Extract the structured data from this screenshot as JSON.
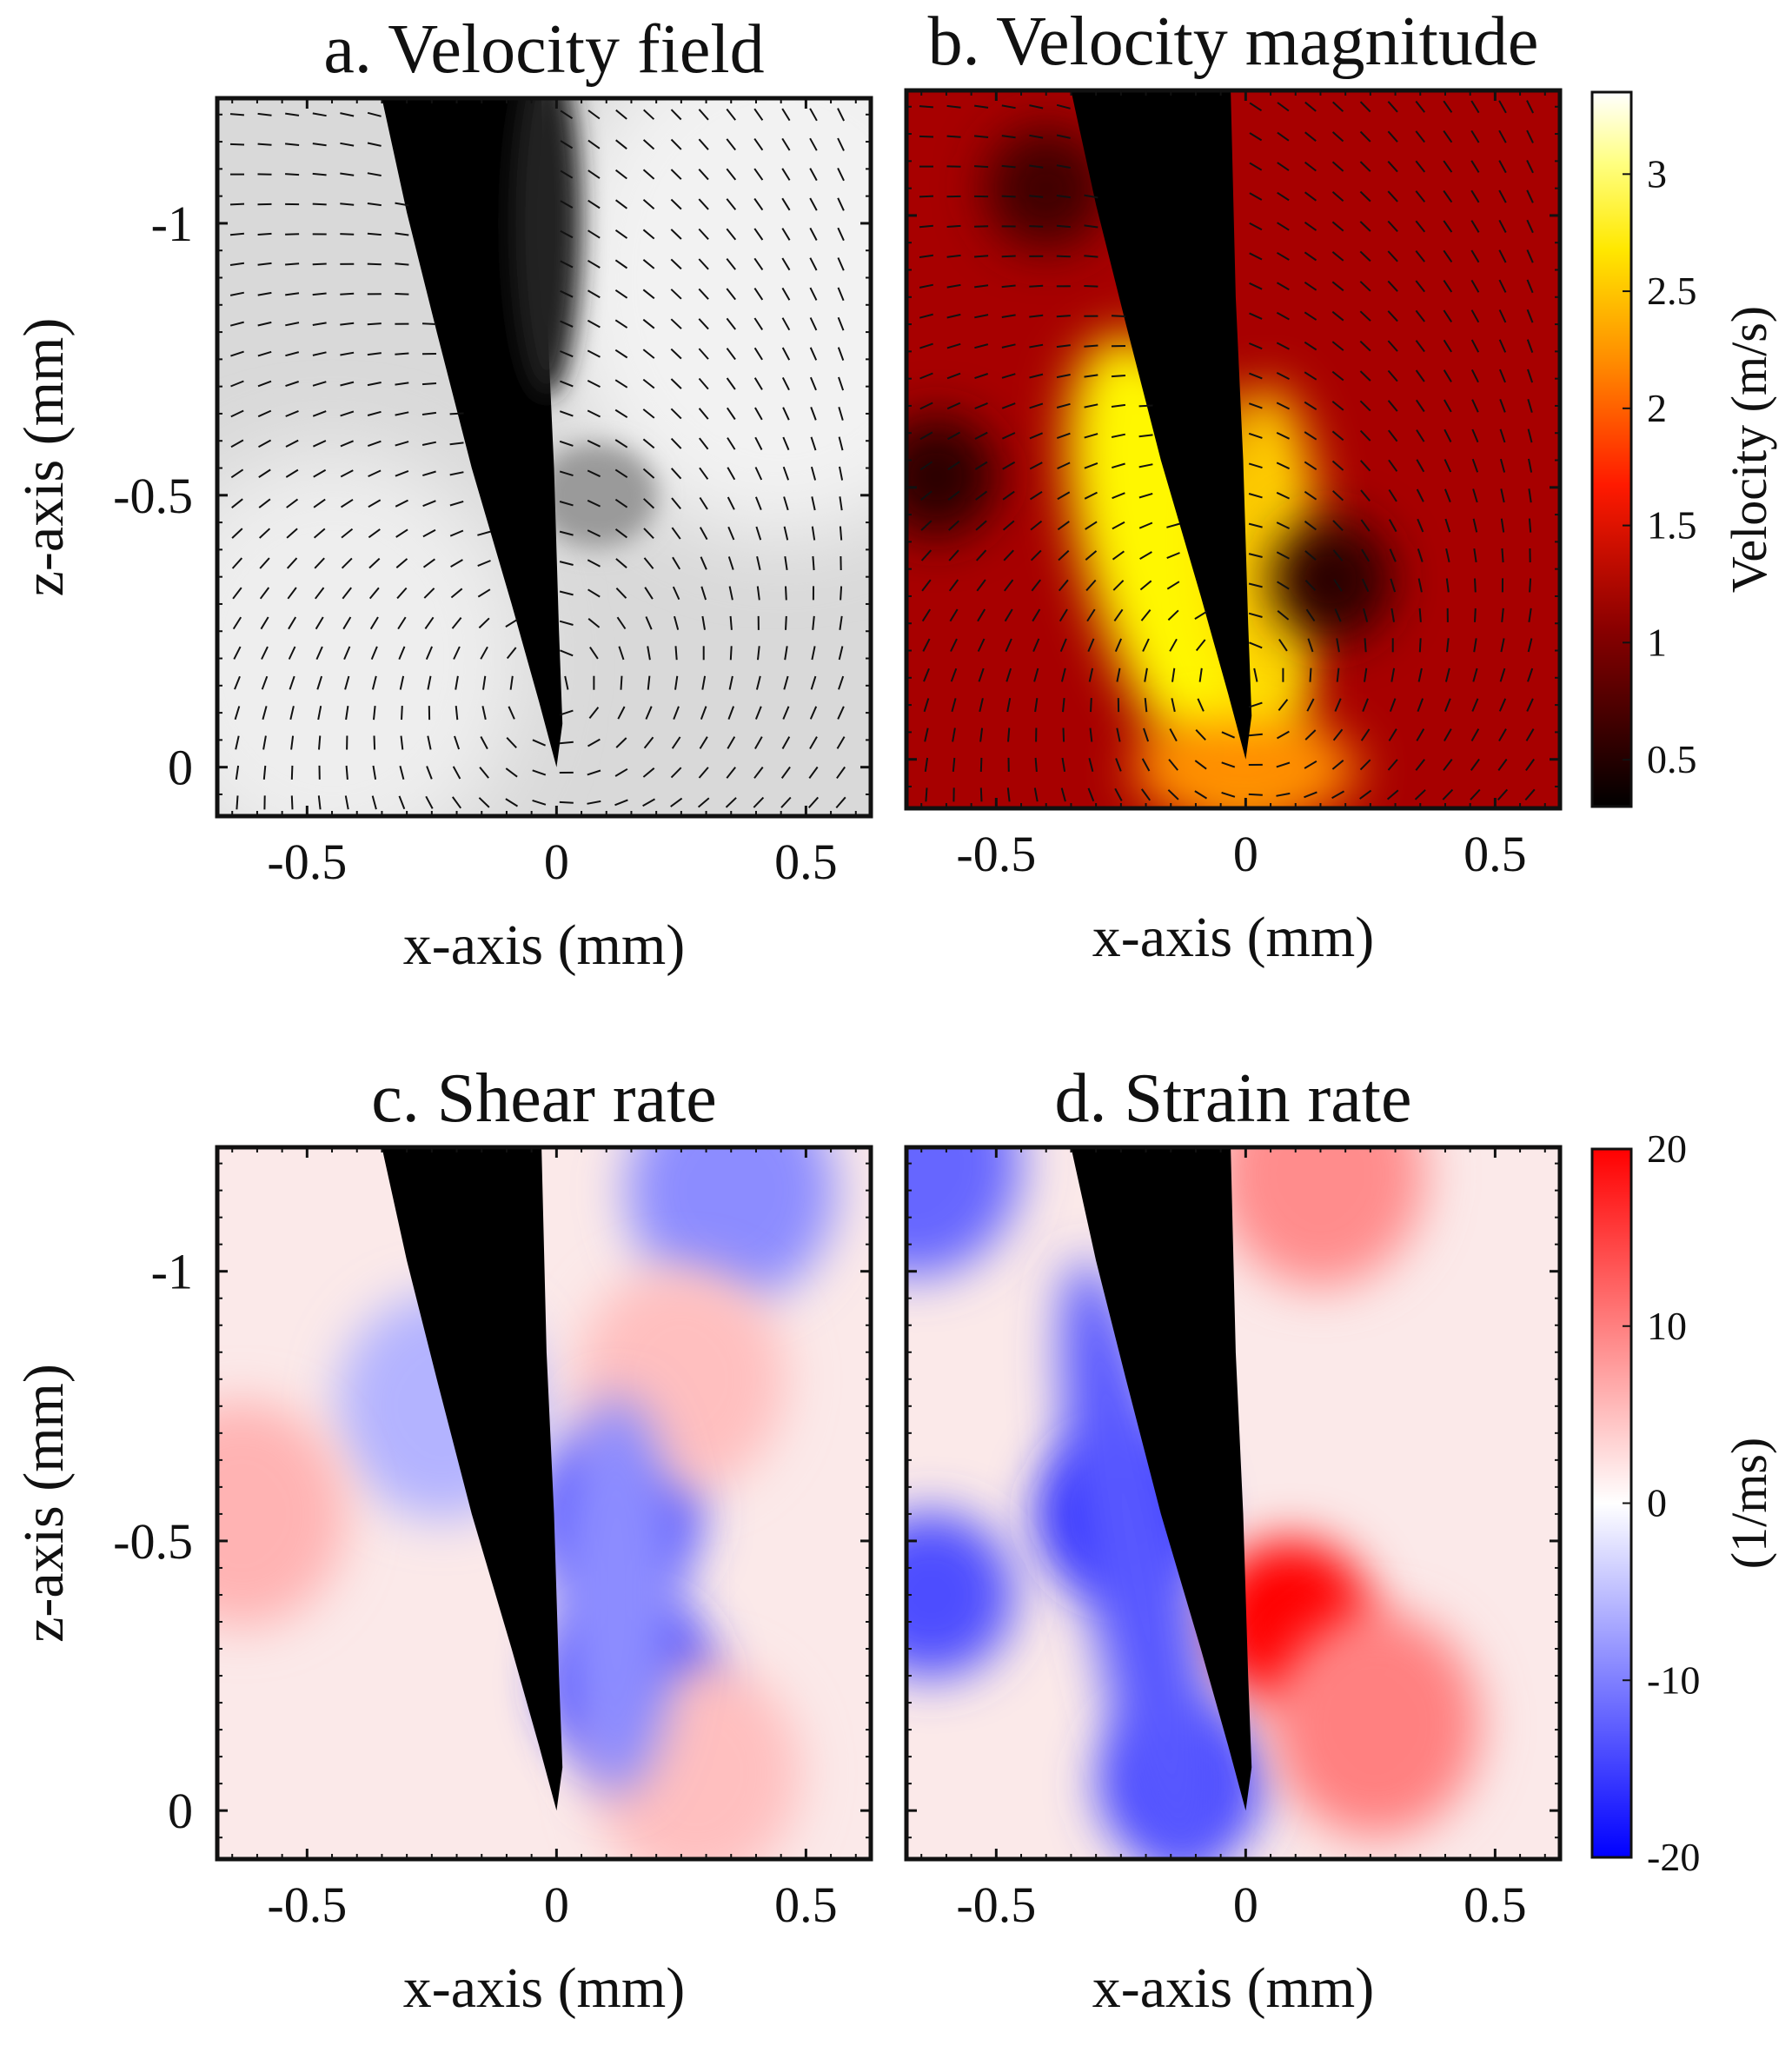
{
  "figure": {
    "colors": {
      "frame": "#111111",
      "tip": "#000000",
      "white": "#ffffff"
    }
  },
  "chart_data": [
    {
      "id": "a",
      "type": "heatmap",
      "title": "a. Velocity field",
      "xlabel": "x-axis (mm)",
      "ylabel": "z-axis (mm)",
      "xlim": [
        -0.68,
        0.63
      ],
      "ylim": [
        -1.23,
        0.09
      ],
      "y_reversed": true,
      "xticks": [
        -0.5,
        0,
        0.5
      ],
      "xticklabels": [
        "-0.5",
        "0",
        "0.5"
      ],
      "yticks": [
        -1,
        -0.5,
        0
      ],
      "yticklabels": [
        "-1",
        "-0.5",
        "0"
      ],
      "background": "grayscale microscope image",
      "overlay": "velocity vectors (quiver)",
      "tip_region": {
        "left_edge": [
          [
            -0.35,
            -1.23
          ],
          [
            0,
            0
          ]
        ],
        "right_edge": [
          [
            -0.04,
            -1.23
          ],
          [
            0,
            0
          ]
        ]
      }
    },
    {
      "id": "b",
      "type": "heatmap",
      "title": "b. Velocity magnitude",
      "xlabel": "x-axis (mm)",
      "ylabel": "",
      "xlim": [
        -0.68,
        0.63
      ],
      "ylim": [
        -1.23,
        0.09
      ],
      "y_reversed": true,
      "xticks": [
        -0.5,
        0,
        0.5
      ],
      "xticklabels": [
        "-0.5",
        "0",
        "0.5"
      ],
      "overlay": "velocity vectors (quiver)",
      "colorbar": {
        "label": "Velocity (m/s)",
        "colormap": "hot",
        "range": [
          0.3,
          3.35
        ],
        "ticks": [
          0.5,
          1,
          1.5,
          2,
          2.5,
          3
        ],
        "ticklabels": [
          "0.5",
          "1",
          "1.5",
          "2",
          "2.5",
          "3"
        ]
      },
      "features": [
        {
          "name": "high-velocity band along tip",
          "x": -0.12,
          "z": -0.45,
          "value": 2.6
        },
        {
          "name": "low-velocity vortex right",
          "x": 0.17,
          "z": -0.33,
          "value": 0.5
        },
        {
          "name": "low-velocity vortex left",
          "x": -0.62,
          "z": -0.52,
          "value": 0.5
        },
        {
          "name": "low-velocity region top",
          "x": -0.4,
          "z": -1.05,
          "value": 0.6
        }
      ]
    },
    {
      "id": "c",
      "type": "heatmap",
      "title": "c. Shear rate",
      "xlabel": "x-axis (mm)",
      "ylabel": "z-axis (mm)",
      "xlim": [
        -0.68,
        0.63
      ],
      "ylim": [
        -1.23,
        0.09
      ],
      "y_reversed": true,
      "xticks": [
        -0.5,
        0,
        0.5
      ],
      "xticklabels": [
        "-0.5",
        "0",
        "0.5"
      ],
      "yticks": [
        -1,
        -0.5,
        0
      ],
      "yticklabels": [
        "-1",
        "-0.5",
        "0"
      ],
      "colormap": "blue-white-red",
      "range": [
        -20,
        20
      ],
      "features": [
        {
          "name": "negative lobe",
          "x": 0.12,
          "z": -0.55,
          "value": -14
        },
        {
          "name": "negative lobe",
          "x": 0.15,
          "z": -0.24,
          "value": -16
        },
        {
          "name": "negative band",
          "x": -0.23,
          "z": -0.75,
          "value": -6
        },
        {
          "name": "negative top",
          "x": 0.35,
          "z": -1.15,
          "value": -9
        },
        {
          "name": "positive left",
          "x": -0.63,
          "z": -0.55,
          "value": 6
        },
        {
          "name": "positive right",
          "x": 0.25,
          "z": -0.8,
          "value": 5
        },
        {
          "name": "positive bottom",
          "x": 0.28,
          "z": -0.07,
          "value": 5
        }
      ]
    },
    {
      "id": "d",
      "type": "heatmap",
      "title": "d. Strain rate",
      "xlabel": "x-axis (mm)",
      "ylabel": "",
      "xlim": [
        -0.68,
        0.63
      ],
      "ylim": [
        -1.23,
        0.09
      ],
      "y_reversed": true,
      "xticks": [
        -0.5,
        0,
        0.5
      ],
      "xticklabels": [
        "-0.5",
        "0",
        "0.5"
      ],
      "colormap": "blue-white-red",
      "colorbar": {
        "label": "(1/ms)",
        "range": [
          -20,
          20
        ],
        "ticks": [
          -20,
          -10,
          0,
          10,
          20
        ],
        "ticklabels": [
          "-20",
          "-10",
          "0",
          "10",
          "20"
        ]
      },
      "features": [
        {
          "name": "negative band along tip",
          "x": -0.25,
          "z": -0.55,
          "value": -17
        },
        {
          "name": "negative band lower",
          "x": -0.13,
          "z": -0.05,
          "value": -14
        },
        {
          "name": "negative left",
          "x": -0.63,
          "z": -0.4,
          "value": -14
        },
        {
          "name": "negative top-left",
          "x": -0.66,
          "z": -1.2,
          "value": -12
        },
        {
          "name": "positive hotspot",
          "x": 0.09,
          "z": -0.35,
          "value": 20
        },
        {
          "name": "positive spot",
          "x": 0.26,
          "z": -0.16,
          "value": 10
        },
        {
          "name": "positive top",
          "x": 0.15,
          "z": -1.18,
          "value": 9
        }
      ]
    }
  ]
}
